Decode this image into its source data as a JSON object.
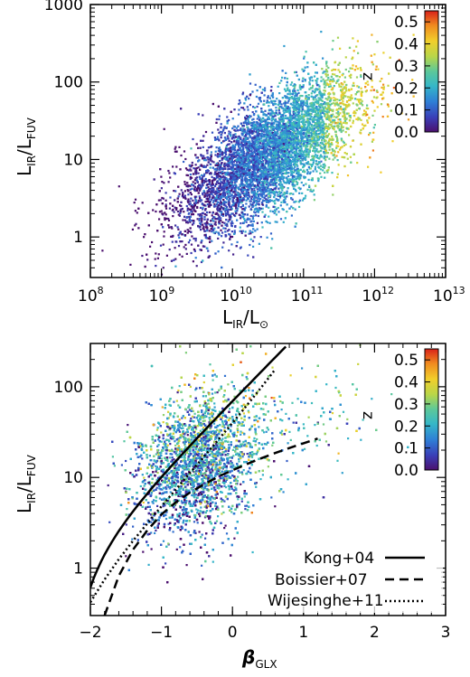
{
  "chart_data": [
    {
      "type": "scatter",
      "xlabel": "L_IR/L_⊙",
      "ylabel": "L_IR/L_FUV",
      "xscale": "log",
      "yscale": "log",
      "xlim": [
        100000000.0,
        10000000000000.0
      ],
      "ylim": [
        0.3,
        1000
      ],
      "xticks": [
        {
          "base": "10",
          "exp": "8"
        },
        {
          "base": "10",
          "exp": "9"
        },
        {
          "base": "10",
          "exp": "10"
        },
        {
          "base": "10",
          "exp": "11"
        },
        {
          "base": "10",
          "exp": "12"
        },
        {
          "base": "10",
          "exp": "13"
        }
      ],
      "yticks": [
        "1",
        "10",
        "100",
        "1000"
      ],
      "colorbar": {
        "label": "z",
        "range": [
          0.0,
          0.55
        ],
        "ticks": [
          "0.0",
          "0.1",
          "0.2",
          "0.3",
          "0.4",
          "0.5"
        ],
        "colormap": "rainbow",
        "placement": "top-right"
      },
      "points": {
        "count": 7500,
        "description_of_trend": "log10(L_IR/L_FUV) ≈ 1.05 + 0.55·(log10(L_IR) − 10.5); redshift increases with L_IR",
        "center": {
          "log_x": 10.5,
          "log_y": 1.05
        },
        "slope": 0.55,
        "x_range_log": [
          8.2,
          12.8
        ]
      }
    },
    {
      "type": "scatter",
      "xlabel": "β_GLX",
      "ylabel": "L_IR/L_FUV",
      "xscale": "linear",
      "yscale": "log",
      "xlim": [
        -2,
        3
      ],
      "ylim": [
        0.3,
        300
      ],
      "xticks": [
        "−2",
        "−1",
        "0",
        "1",
        "2",
        "3"
      ],
      "yticks": [
        "1",
        "10",
        "100"
      ],
      "colorbar": {
        "label": "z",
        "range": [
          0.0,
          0.55
        ],
        "ticks": [
          "0.0",
          "0.1",
          "0.2",
          "0.3",
          "0.4",
          "0.5"
        ],
        "colormap": "rainbow",
        "placement": "top-right"
      },
      "points": {
        "count": 7500,
        "description_of_trend": "broad cloud centred near beta ≈ -0.5, L_IR/L_FUV ≈ 15",
        "center": {
          "beta": -0.5,
          "log_y": 1.15
        }
      },
      "series": [
        {
          "name": "Kong+04",
          "style": "solid",
          "relation": "log10(IRX) = log10(10^(0.4*(4.43+1.99*beta)) - 1) + 0.076",
          "beta_range": [
            -2.0,
            0.75
          ]
        },
        {
          "name": "Boissier+07",
          "style": "dashed",
          "relation": "A_FUV = 0.83*(beta+2.36)+0.53? fitted: log10(IRX)",
          "x": [
            -1.8,
            -1.6,
            -1.4,
            -1.2,
            -1.0,
            -0.8,
            -0.6,
            -0.4,
            -0.2,
            0.0,
            0.2,
            0.4,
            0.6,
            0.8,
            1.0,
            1.2
          ],
          "y": [
            0.3,
            0.82,
            1.6,
            2.6,
            3.9,
            5.3,
            6.8,
            8.4,
            10.2,
            12.0,
            14.0,
            16.2,
            18.6,
            21.1,
            23.8,
            26.8
          ]
        },
        {
          "name": "Wijesinghe+11",
          "style": "dotted",
          "x": [
            -2.0,
            -1.8,
            -1.6,
            -1.4,
            -1.2,
            -1.0,
            -0.8,
            -0.6,
            -0.4,
            -0.2,
            0.0,
            0.2,
            0.4,
            0.6
          ],
          "y": [
            0.42,
            0.75,
            1.25,
            2.0,
            3.1,
            4.8,
            7.3,
            11.2,
            17.0,
            26.0,
            40.0,
            62.0,
            97.0,
            155.0
          ]
        }
      ],
      "legend": {
        "placement": "bottom-right",
        "entries": [
          "Kong+04",
          "Boissier+07",
          "Wijesinghe+11"
        ]
      }
    }
  ]
}
